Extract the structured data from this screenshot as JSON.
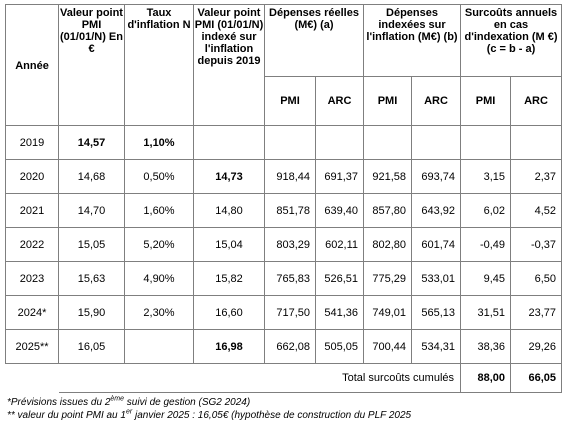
{
  "headers": {
    "annee": "Année",
    "valeur_point": "Valeur point PMI (01/01/N) En €",
    "taux_inflation": "Taux d'inflation N",
    "valeur_indexee": "Valeur point PMI (01/01/N) indexé sur l'inflation depuis 2019",
    "depenses_reelles": "Dépenses réelles (M€) (a)",
    "depenses_indexees": "Dépenses indexées sur l'inflation (M€) (b)",
    "surcouts": "Surcoûts annuels en cas d'indexation (M €) (c = b - a)",
    "pmi": "PMI",
    "arc": "ARC"
  },
  "rows": [
    {
      "annee": "2019",
      "valeur": "14,57",
      "taux": "1,10%",
      "indexe": "",
      "dr_pmi": "",
      "dr_arc": "",
      "di_pmi": "",
      "di_arc": "",
      "s_pmi": "",
      "s_arc": ""
    },
    {
      "annee": "2020",
      "valeur": "14,68",
      "taux": "0,50%",
      "indexe": "14,73",
      "dr_pmi": "918,44",
      "dr_arc": "691,37",
      "di_pmi": "921,58",
      "di_arc": "693,74",
      "s_pmi": "3,15",
      "s_arc": "2,37"
    },
    {
      "annee": "2021",
      "valeur": "14,70",
      "taux": "1,60%",
      "indexe": "14,80",
      "dr_pmi": "851,78",
      "dr_arc": "639,40",
      "di_pmi": "857,80",
      "di_arc": "643,92",
      "s_pmi": "6,02",
      "s_arc": "4,52"
    },
    {
      "annee": "2022",
      "valeur": "15,05",
      "taux": "5,20%",
      "indexe": "15,04",
      "dr_pmi": "803,29",
      "dr_arc": "602,11",
      "di_pmi": "802,80",
      "di_arc": "601,74",
      "s_pmi": "-0,49",
      "s_arc": "-0,37"
    },
    {
      "annee": "2023",
      "valeur": "15,63",
      "taux": "4,90%",
      "indexe": "15,82",
      "dr_pmi": "765,83",
      "dr_arc": "526,51",
      "di_pmi": "775,29",
      "di_arc": "533,01",
      "s_pmi": "9,45",
      "s_arc": "6,50"
    },
    {
      "annee": "2024*",
      "valeur": "15,90",
      "taux": "2,30%",
      "indexe": "16,60",
      "dr_pmi": "717,50",
      "dr_arc": "541,36",
      "di_pmi": "749,01",
      "di_arc": "565,13",
      "s_pmi": "31,51",
      "s_arc": "23,77"
    },
    {
      "annee": "2025**",
      "valeur": "16,05",
      "taux": "",
      "indexe": "16,98",
      "dr_pmi": "662,08",
      "dr_arc": "505,05",
      "di_pmi": "700,44",
      "di_arc": "534,31",
      "s_pmi": "38,36",
      "s_arc": "29,26"
    }
  ],
  "total": {
    "label": "Total surcoûts cumulés",
    "pmi": "88,00",
    "arc": "66,05"
  },
  "notes": {
    "note1_a": "*Prévisions issues du 2",
    "note1_sup": "ème",
    "note1_b": " suivi de gestion (SG2 2024)",
    "note2_a": "** valeur du point PMI au 1",
    "note2_sup": "er",
    "note2_b": " janvier 2025 : 16,05€ (hypothèse de construction du PLF 2025"
  }
}
